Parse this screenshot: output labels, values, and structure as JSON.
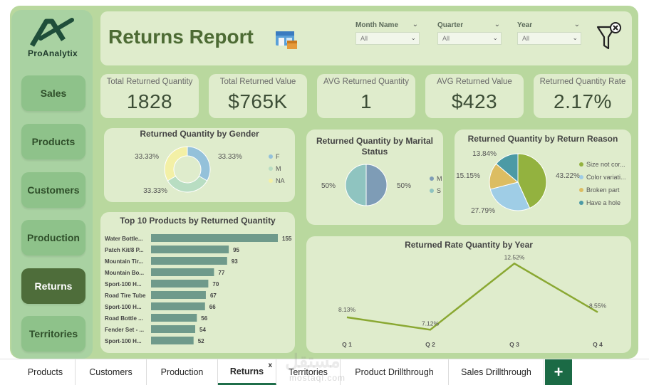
{
  "app": {
    "logo_text": "ProAnalytix",
    "title": "Returns Report"
  },
  "nav": [
    {
      "label": "Sales"
    },
    {
      "label": "Products"
    },
    {
      "label": "Customers"
    },
    {
      "label": "Production"
    },
    {
      "label": "Returns"
    },
    {
      "label": "Territories"
    }
  ],
  "slicers": [
    {
      "label": "Month Name",
      "value": "All"
    },
    {
      "label": "Quarter",
      "value": "All"
    },
    {
      "label": "Year",
      "value": "All"
    }
  ],
  "kpis": [
    {
      "label": "Total Returned Quantity",
      "value": "1828"
    },
    {
      "label": "Total Returned Value",
      "value": "$765K"
    },
    {
      "label": "AVG Returned Quantity",
      "value": "1"
    },
    {
      "label": "AVG Returned Value",
      "value": "$423"
    },
    {
      "label": "Returned Quantity Rate",
      "value": "2.17%"
    }
  ],
  "tabs": [
    {
      "label": "Products"
    },
    {
      "label": "Customers"
    },
    {
      "label": "Production"
    },
    {
      "label": "Returns",
      "close": "x"
    },
    {
      "label": "Territories"
    },
    {
      "label": "Product Drillthrough"
    },
    {
      "label": "Sales Drillthrough"
    }
  ],
  "tab_add_label": "+",
  "watermark": {
    "main": "مستقل",
    "sub": "mostaql.com"
  },
  "colors": {
    "accent": "#4e6d3a",
    "panel": "#dfeccc",
    "canvas": "#b9d89e",
    "bar": "#6f9a8b",
    "line": "#8aa832"
  },
  "chart_data": [
    {
      "type": "pie",
      "variant": "donut",
      "title": "Returned Quantity by Gender",
      "labels": [
        "F",
        "M",
        "NA"
      ],
      "values": [
        33.33,
        33.33,
        33.33
      ],
      "value_labels": [
        "33.33%",
        "33.33%",
        "33.33%"
      ],
      "colors": [
        "#94c1da",
        "#b8ddc2",
        "#f3f0a6"
      ]
    },
    {
      "type": "pie",
      "title": "Returned Quantity by Marital Status",
      "labels": [
        "M",
        "S"
      ],
      "values": [
        50,
        50
      ],
      "value_labels": [
        "50%",
        "50%"
      ],
      "colors": [
        "#7e9cb6",
        "#8fc4c0"
      ]
    },
    {
      "type": "pie",
      "title": "Returned Quantity by Return Reason",
      "labels": [
        "Size not cor...",
        "Color variati...",
        "Broken part",
        "Have a hole"
      ],
      "values": [
        43.22,
        27.79,
        15.15,
        13.84
      ],
      "value_labels": [
        "43.22%",
        "27.79%",
        "15.15%",
        "13.84%"
      ],
      "colors": [
        "#93b23f",
        "#9fcde6",
        "#dcbd62",
        "#4c9aa5"
      ]
    },
    {
      "type": "bar",
      "orientation": "horizontal",
      "title": "Top 10 Products by Returned Quantity",
      "categories": [
        "Water Bottle...",
        "Patch Kit/8 P...",
        "Mountain Tir...",
        "Mountain Bo...",
        "Sport-100 H...",
        "Road Tire Tube",
        "Sport-100 H...",
        "Road Bottle ...",
        "Fender Set - ...",
        "Sport-100 H..."
      ],
      "values": [
        155,
        95,
        93,
        77,
        70,
        67,
        66,
        56,
        54,
        52
      ],
      "xlim": [
        0,
        155
      ]
    },
    {
      "type": "line",
      "title": "Returned Rate Quantity by Year",
      "categories": [
        "Q 1",
        "Q 2",
        "Q 3",
        "Q 4"
      ],
      "values": [
        8.13,
        7.12,
        12.52,
        8.55
      ],
      "value_labels": [
        "8.13%",
        "7.12%",
        "12.52%",
        "8.55%"
      ],
      "ylim": [
        6.5,
        13
      ]
    }
  ]
}
